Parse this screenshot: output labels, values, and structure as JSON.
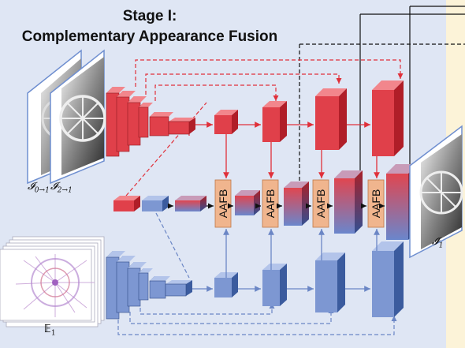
{
  "title": {
    "line1": "Stage I:",
    "line2": "Complementary Appearance Fusion"
  },
  "labels": {
    "input_warp_0": "𝓘",
    "input_warp_0_sub": "0→1",
    "input_warp_2": "𝓘",
    "input_warp_2_sub": "2→1",
    "output_hat": "𝓘̂",
    "output_hat_sub": "1",
    "event_input": "𝔼",
    "event_input_sub": "1"
  },
  "blocks": {
    "fusion_label": "AAFB",
    "count": 4
  },
  "colors": {
    "background": "#dfe6f4",
    "red_face": "#e0404a",
    "red_side": "#b01e28",
    "red_top": "#f2868c",
    "blue_face": "#7d97d2",
    "blue_side": "#3b5b9e",
    "blue_top": "#b3c4ea",
    "aafb_fill": "#f0b58e",
    "aafb_stroke": "#c07848",
    "red_line": "#e0303a",
    "blue_line": "#6b86c5",
    "black_line": "#111111",
    "side_strip": "#fcf3d8"
  },
  "icons": {
    "warped_frames": "rotor-photo-frames",
    "event_stack": "event-voxel-stack",
    "output_frame": "rotor-photo-output"
  }
}
